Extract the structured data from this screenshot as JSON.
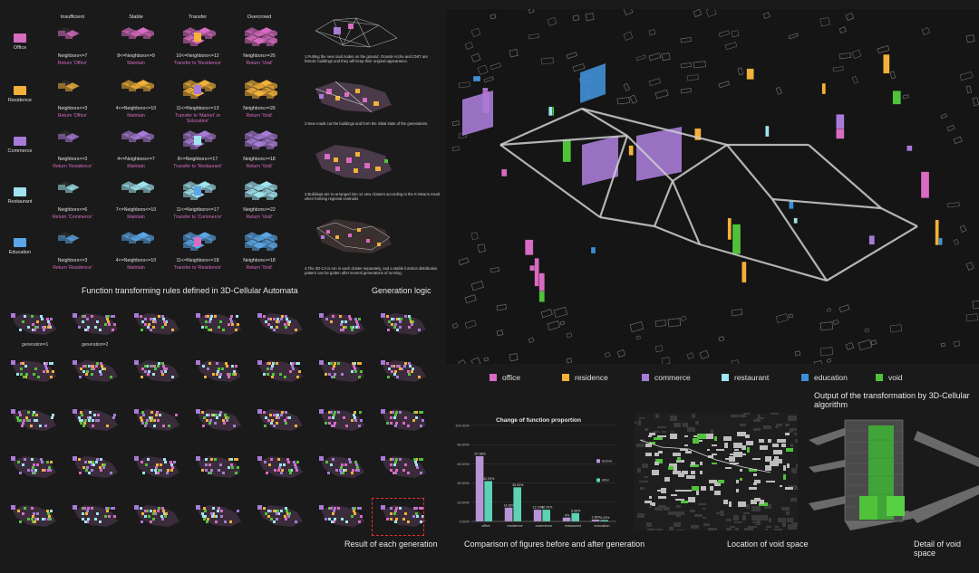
{
  "rules": {
    "columns": [
      "Insufficient",
      "Stable",
      "Transfer",
      "Overcrowd"
    ],
    "rows": [
      {
        "name": "Office",
        "color": "#d86bc2",
        "cells": [
          {
            "cond": "Neighbors<=7",
            "action": "Return 'Office'"
          },
          {
            "cond": "8<=Neighbors<=9",
            "action": "Maintain"
          },
          {
            "cond": "10<=Neighbors<=12",
            "action": "Transfer to 'Residence'"
          },
          {
            "cond": "Neighbors>=26",
            "action": "Return 'Void'"
          }
        ]
      },
      {
        "name": "Residence",
        "color": "#f2b13a",
        "cells": [
          {
            "cond": "Neighbors<=3",
            "action": "Return 'Office'"
          },
          {
            "cond": "4<=Neighbors<=10",
            "action": "Maintain"
          },
          {
            "cond": "11<=Neighbors<=13",
            "action": "Transfer to 'Market' or 'Education'"
          },
          {
            "cond": "Neighbors>=26",
            "action": "Return 'Void'"
          }
        ]
      },
      {
        "name": "Commerce",
        "color": "#a77bd6",
        "cells": [
          {
            "cond": "Neighbors<=3",
            "action": "Return 'Residence'"
          },
          {
            "cond": "4<=Neighbors<=7",
            "action": "Maintain"
          },
          {
            "cond": "8<=Neighbors<=17",
            "action": "Transfer to 'Restaurant'"
          },
          {
            "cond": "Neighbors>=18",
            "action": "Return 'Void'"
          }
        ]
      },
      {
        "name": "Restaurant",
        "color": "#9fe3ee",
        "cells": [
          {
            "cond": "Neighbors<=6",
            "action": "Return 'Commerce'"
          },
          {
            "cond": "7<=Neighbors<=10",
            "action": "Maintain"
          },
          {
            "cond": "11<=Neighbors<=17",
            "action": "Transfer to 'Commerce'"
          },
          {
            "cond": "Neighbors>=22",
            "action": "Return 'Void'"
          }
        ]
      },
      {
        "name": "Education",
        "color": "#5aa6e6",
        "cells": [
          {
            "cond": "Neighbors<=3",
            "action": "Return 'Residence'"
          },
          {
            "cond": "4<=Neighbors<=10",
            "action": "Maintain"
          },
          {
            "cond": "11<=Neighbors<=18",
            "action": "Transfer to 'Residence'"
          },
          {
            "cond": "Neighbors>=18",
            "action": "Return 'Void'"
          }
        ]
      }
    ],
    "caption": "Function transforming rules defined in 3D-Cellular Automata"
  },
  "logic": {
    "steps": [
      "1.Putting the new road nodes on the ground. Grande Arche and CNIT are historic buildings and they will keep their original appearance.",
      "2.New roads cut the buildings and form the initial state of the generations.",
      "3.Buildings are re-arranged into 14 new clusters according to the K-Means result when forming regional centroids",
      "4.The 3D-CA is run in each cluster separately, and a stable function distribution pattern can be gotten after several generations of running."
    ],
    "caption": "Generation logic"
  },
  "generations": {
    "labels": [
      "generation=1",
      "generation=2"
    ],
    "caption": "Result of each generation"
  },
  "main": {
    "legend": [
      {
        "label": "office",
        "color": "#d86bc2"
      },
      {
        "label": "residence",
        "color": "#f2b13a"
      },
      {
        "label": "commerce",
        "color": "#a77bd6"
      },
      {
        "label": "restaurant",
        "color": "#9fe3ee"
      },
      {
        "label": "education",
        "color": "#3f8fd6"
      },
      {
        "label": "void",
        "color": "#4fc23a"
      }
    ],
    "caption": "Output of the transformation by 3D-Cellular algorithm"
  },
  "chart_data": {
    "type": "bar",
    "title": "Change of function proportion",
    "categories": [
      "office",
      "residence",
      "commerce",
      "restaurant",
      "education"
    ],
    "series": [
      {
        "name": "before",
        "values": [
          67.98,
          14.36,
          12.19,
          4.0,
          1.86
        ],
        "color": "#b894d6"
      },
      {
        "name": "after",
        "values": [
          42.05,
          35.53,
          12.2,
          8.68,
          1.43
        ],
        "color": "#5cd1b4"
      }
    ],
    "value_labels": {
      "before": [
        "67.98%",
        "14.36%",
        "12.19%",
        "4%",
        "1.86%"
      ],
      "after": [
        "42.05%",
        "35.53%",
        "12.20%",
        "8.68%",
        "1.43%"
      ]
    },
    "yticks": [
      "0.00%",
      "20.00%",
      "40.00%",
      "60.00%",
      "80.00%",
      "100.00%"
    ],
    "ylim": [
      0,
      100
    ],
    "legend_position": "right",
    "caption": "Comparison of figures before and after generation"
  },
  "void_location": {
    "caption": "Location of void space"
  },
  "void_detail": {
    "caption": "Detail of void space"
  }
}
